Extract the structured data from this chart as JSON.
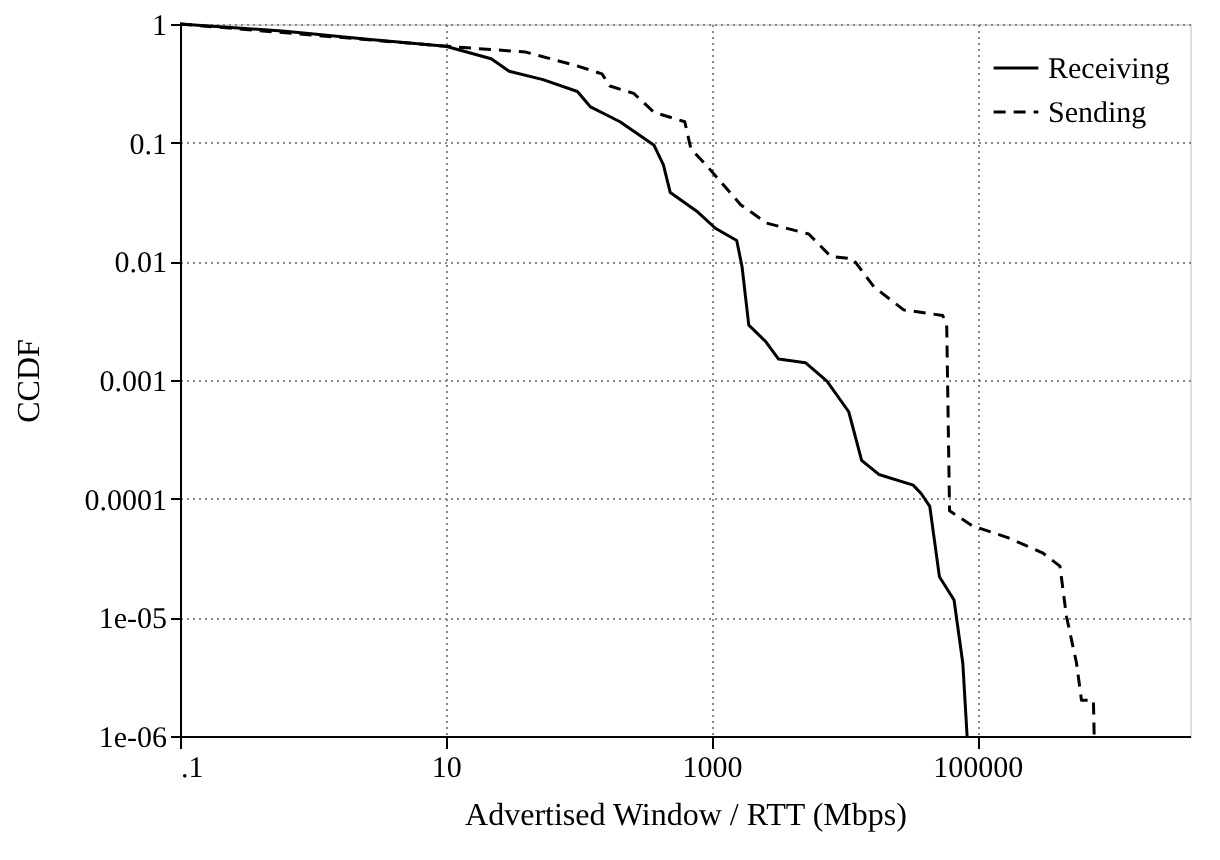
{
  "chart_data": {
    "type": "line",
    "xlabel": "Advertised Window / RTT (Mbps)",
    "ylabel": "CCDF",
    "log": "xy",
    "grid": true,
    "legend": "top right",
    "marker": "none",
    "xlim": [
      0.1,
      4000000
    ],
    "ylim": [
      1e-06,
      1
    ],
    "xticks": [
      {
        "value": 0.1,
        "label": ".1"
      },
      10,
      1000,
      100000
    ],
    "yticks": [
      {
        "value": 1e-06,
        "label": "1e-06"
      },
      {
        "value": 1e-05,
        "label": "1e-05"
      },
      0.0001,
      0.001,
      0.01,
      0.1,
      1
    ],
    "series": [
      {
        "name": "Receiving",
        "color": "#000000",
        "line_style": "solid",
        "x": [
          0.1,
          0.62,
          2.7,
          10,
          22,
          30,
          54,
          98,
          123,
          205,
          370,
          435,
          490,
          790,
          1070,
          1550,
          1700,
          1910,
          2570,
          3200,
          5100,
          7400,
          10800,
          13500,
          18200,
          33000,
          38000,
          44000,
          52000,
          67000,
          78000,
          84000
        ],
        "values": [
          1,
          0.87,
          0.74,
          0.65,
          0.51,
          0.4,
          0.34,
          0.27,
          0.2,
          0.15,
          0.095,
          0.065,
          0.038,
          0.026,
          0.019,
          0.015,
          0.009,
          0.0029,
          0.0021,
          0.0015,
          0.0014,
          0.00098,
          0.00054,
          0.00021,
          0.00016,
          0.00013,
          0.00011,
          8.6e-05,
          2.2e-05,
          1.4e-05,
          4.1e-06,
          1e-06
        ]
      },
      {
        "name": "Sending",
        "color": "#000000",
        "line_style": "dashed",
        "x": [
          0.1,
          10,
          40,
          100,
          150,
          172,
          260,
          370,
          630,
          700,
          910,
          1660,
          2600,
          5400,
          7900,
          11600,
          16700,
          28000,
          55000,
          59000,
          62000,
          92000,
          170000,
          310000,
          420000,
          470000,
          560000,
          610000,
          750000,
          760000
        ],
        "values": [
          1,
          0.65,
          0.58,
          0.44,
          0.38,
          0.3,
          0.26,
          0.18,
          0.15,
          0.089,
          0.065,
          0.03,
          0.021,
          0.017,
          0.011,
          0.0105,
          0.0061,
          0.0039,
          0.0035,
          0.0029,
          7.9e-05,
          5.9e-05,
          4.7e-05,
          3.5e-05,
          2.7e-05,
          1.02e-05,
          4.1e-06,
          2e-06,
          2e-06,
          1e-06
        ]
      }
    ]
  }
}
